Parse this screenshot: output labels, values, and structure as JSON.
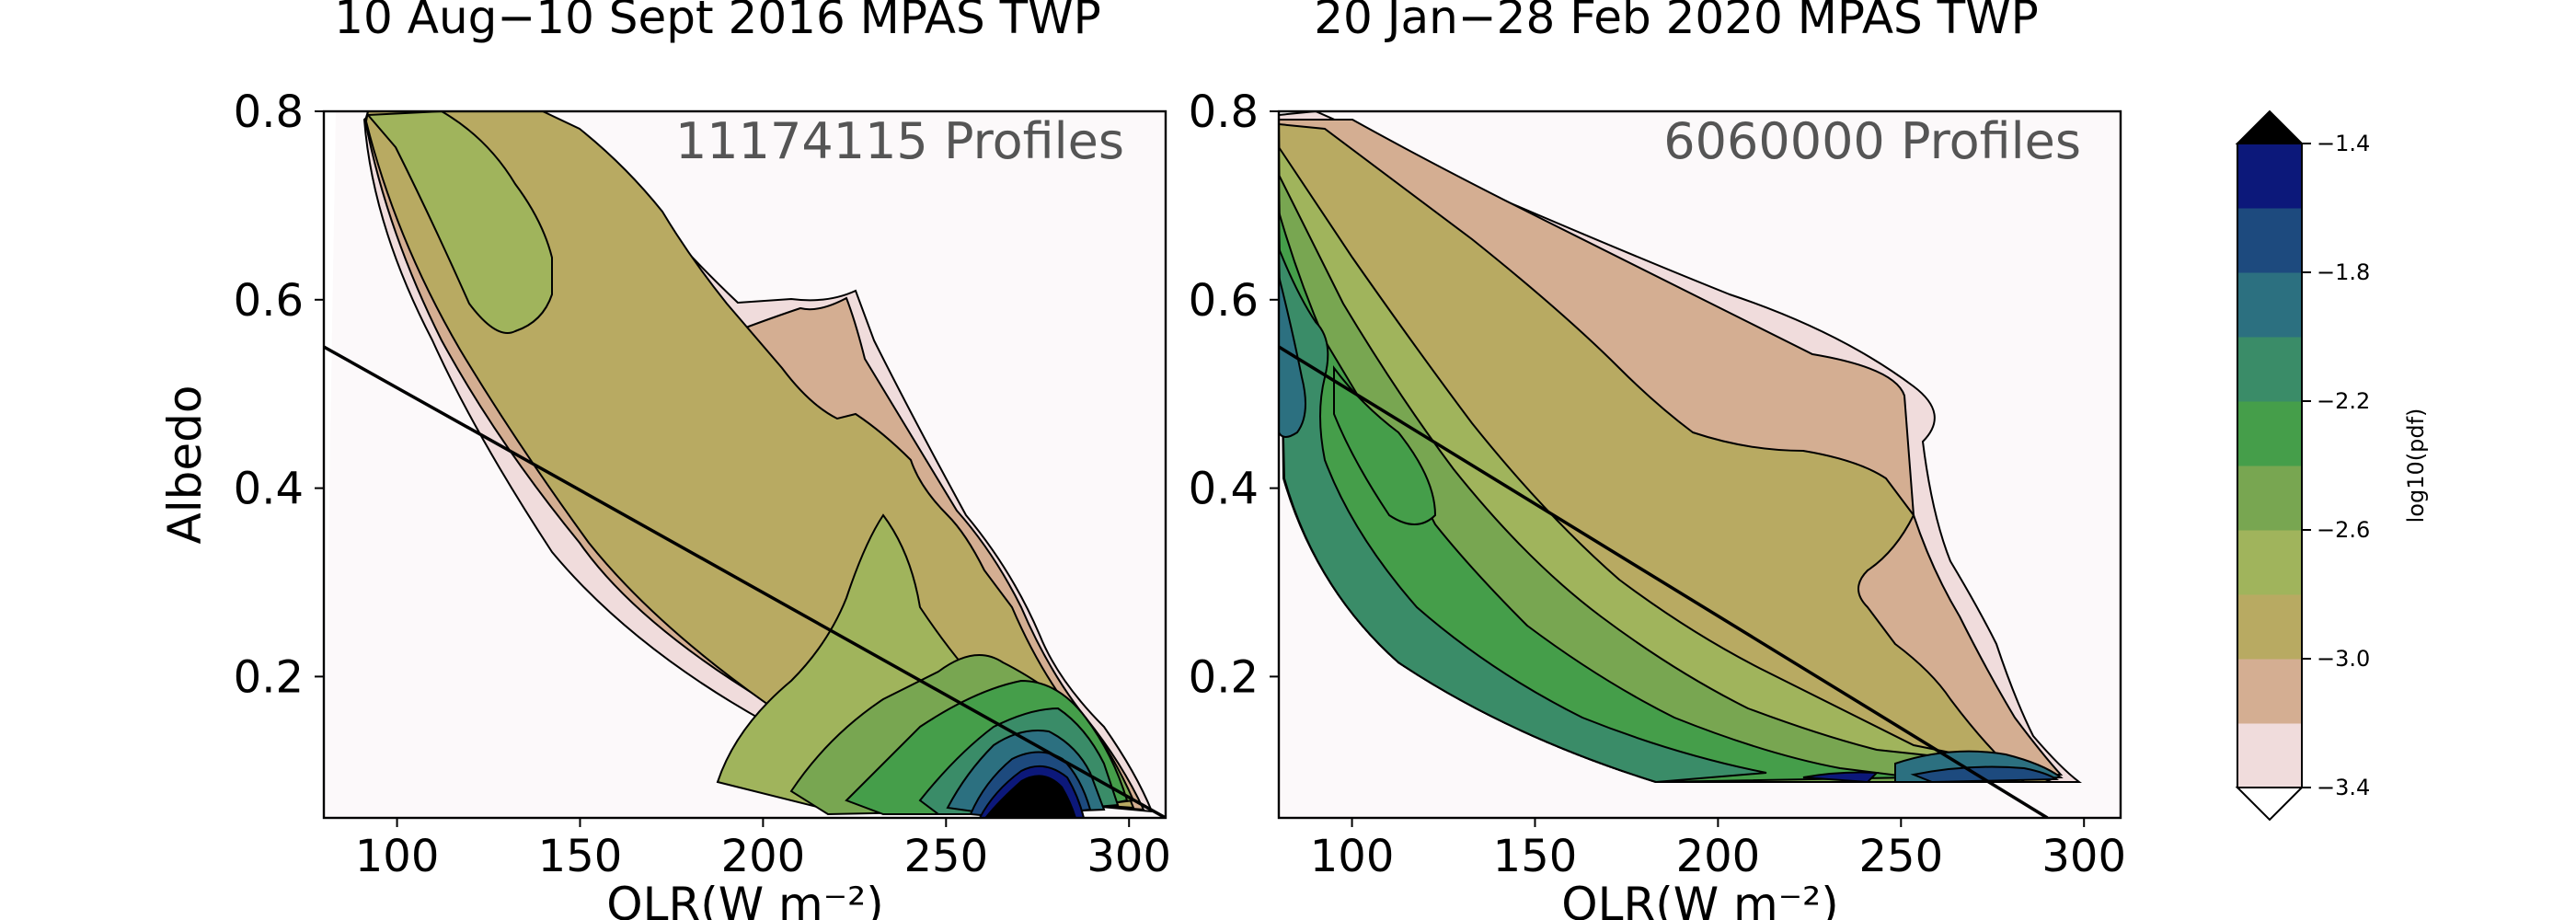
{
  "chart_data": [
    {
      "type": "contour",
      "title": "10 Aug−10 Sept 2016 MPAS TWP",
      "xlabel": "OLR(W m⁻²)",
      "ylabel": "Albedo",
      "xlim": [
        80,
        310
      ],
      "ylim": [
        0.05,
        0.8
      ],
      "x_ticks": [
        "100",
        "150",
        "200",
        "250",
        "300"
      ],
      "y_ticks": [
        "0.2",
        "0.4",
        "0.6",
        "0.8"
      ],
      "annotation": "11174115 Profiles",
      "grid": true,
      "regression_line": {
        "x": [
          80,
          310
        ],
        "y": [
          0.55,
          0.05
        ]
      },
      "contour_levels": [
        -3.4,
        -3.2,
        -3.0,
        -2.8,
        -2.6,
        -2.4,
        -2.2,
        -2.0,
        -1.8,
        -1.6
      ],
      "density_core": {
        "olr": 272,
        "albedo": 0.08
      },
      "secondary_max": {
        "olr": 102,
        "albedo": 0.76
      }
    },
    {
      "type": "contour",
      "title": "20 Jan−28 Feb 2020 MPAS TWP",
      "xlabel": "OLR(W m⁻²)",
      "ylabel": "",
      "xlim": [
        80,
        310
      ],
      "ylim": [
        0.05,
        0.8
      ],
      "x_ticks": [
        "100",
        "150",
        "200",
        "250",
        "300"
      ],
      "y_ticks": [
        "0.2",
        "0.4",
        "0.6",
        "0.8"
      ],
      "annotation": "6060000 Profiles",
      "grid": true,
      "regression_line": {
        "x": [
          80,
          290
        ],
        "y": [
          0.55,
          0.05
        ]
      },
      "contour_levels": [
        -3.4,
        -3.2,
        -3.0,
        -2.8,
        -2.6,
        -2.4,
        -2.2,
        -2.0,
        -1.8,
        -1.6
      ],
      "density_core": {
        "olr": 260,
        "albedo": 0.1
      },
      "secondary_max": {
        "olr": 82,
        "albedo": 0.62
      }
    }
  ],
  "colorbar": {
    "label": "log10(pdf)",
    "ticks": [
      "−1.4",
      "−1.8",
      "−2.2",
      "−2.6",
      "−3.0",
      "−3.4"
    ],
    "tick_values": [
      -1.4,
      -1.8,
      -2.2,
      -2.6,
      -3.0,
      -3.4
    ],
    "range": [
      -3.4,
      -1.4
    ],
    "colors": [
      "#f0dcdc",
      "#d4ae92",
      "#b8aa62",
      "#a0b45c",
      "#78a651",
      "#459e4a",
      "#3a8c68",
      "#2c7080",
      "#1d4a7e",
      "#0c187a"
    ],
    "under_color": "#ffffff",
    "over_color": "#000000"
  }
}
